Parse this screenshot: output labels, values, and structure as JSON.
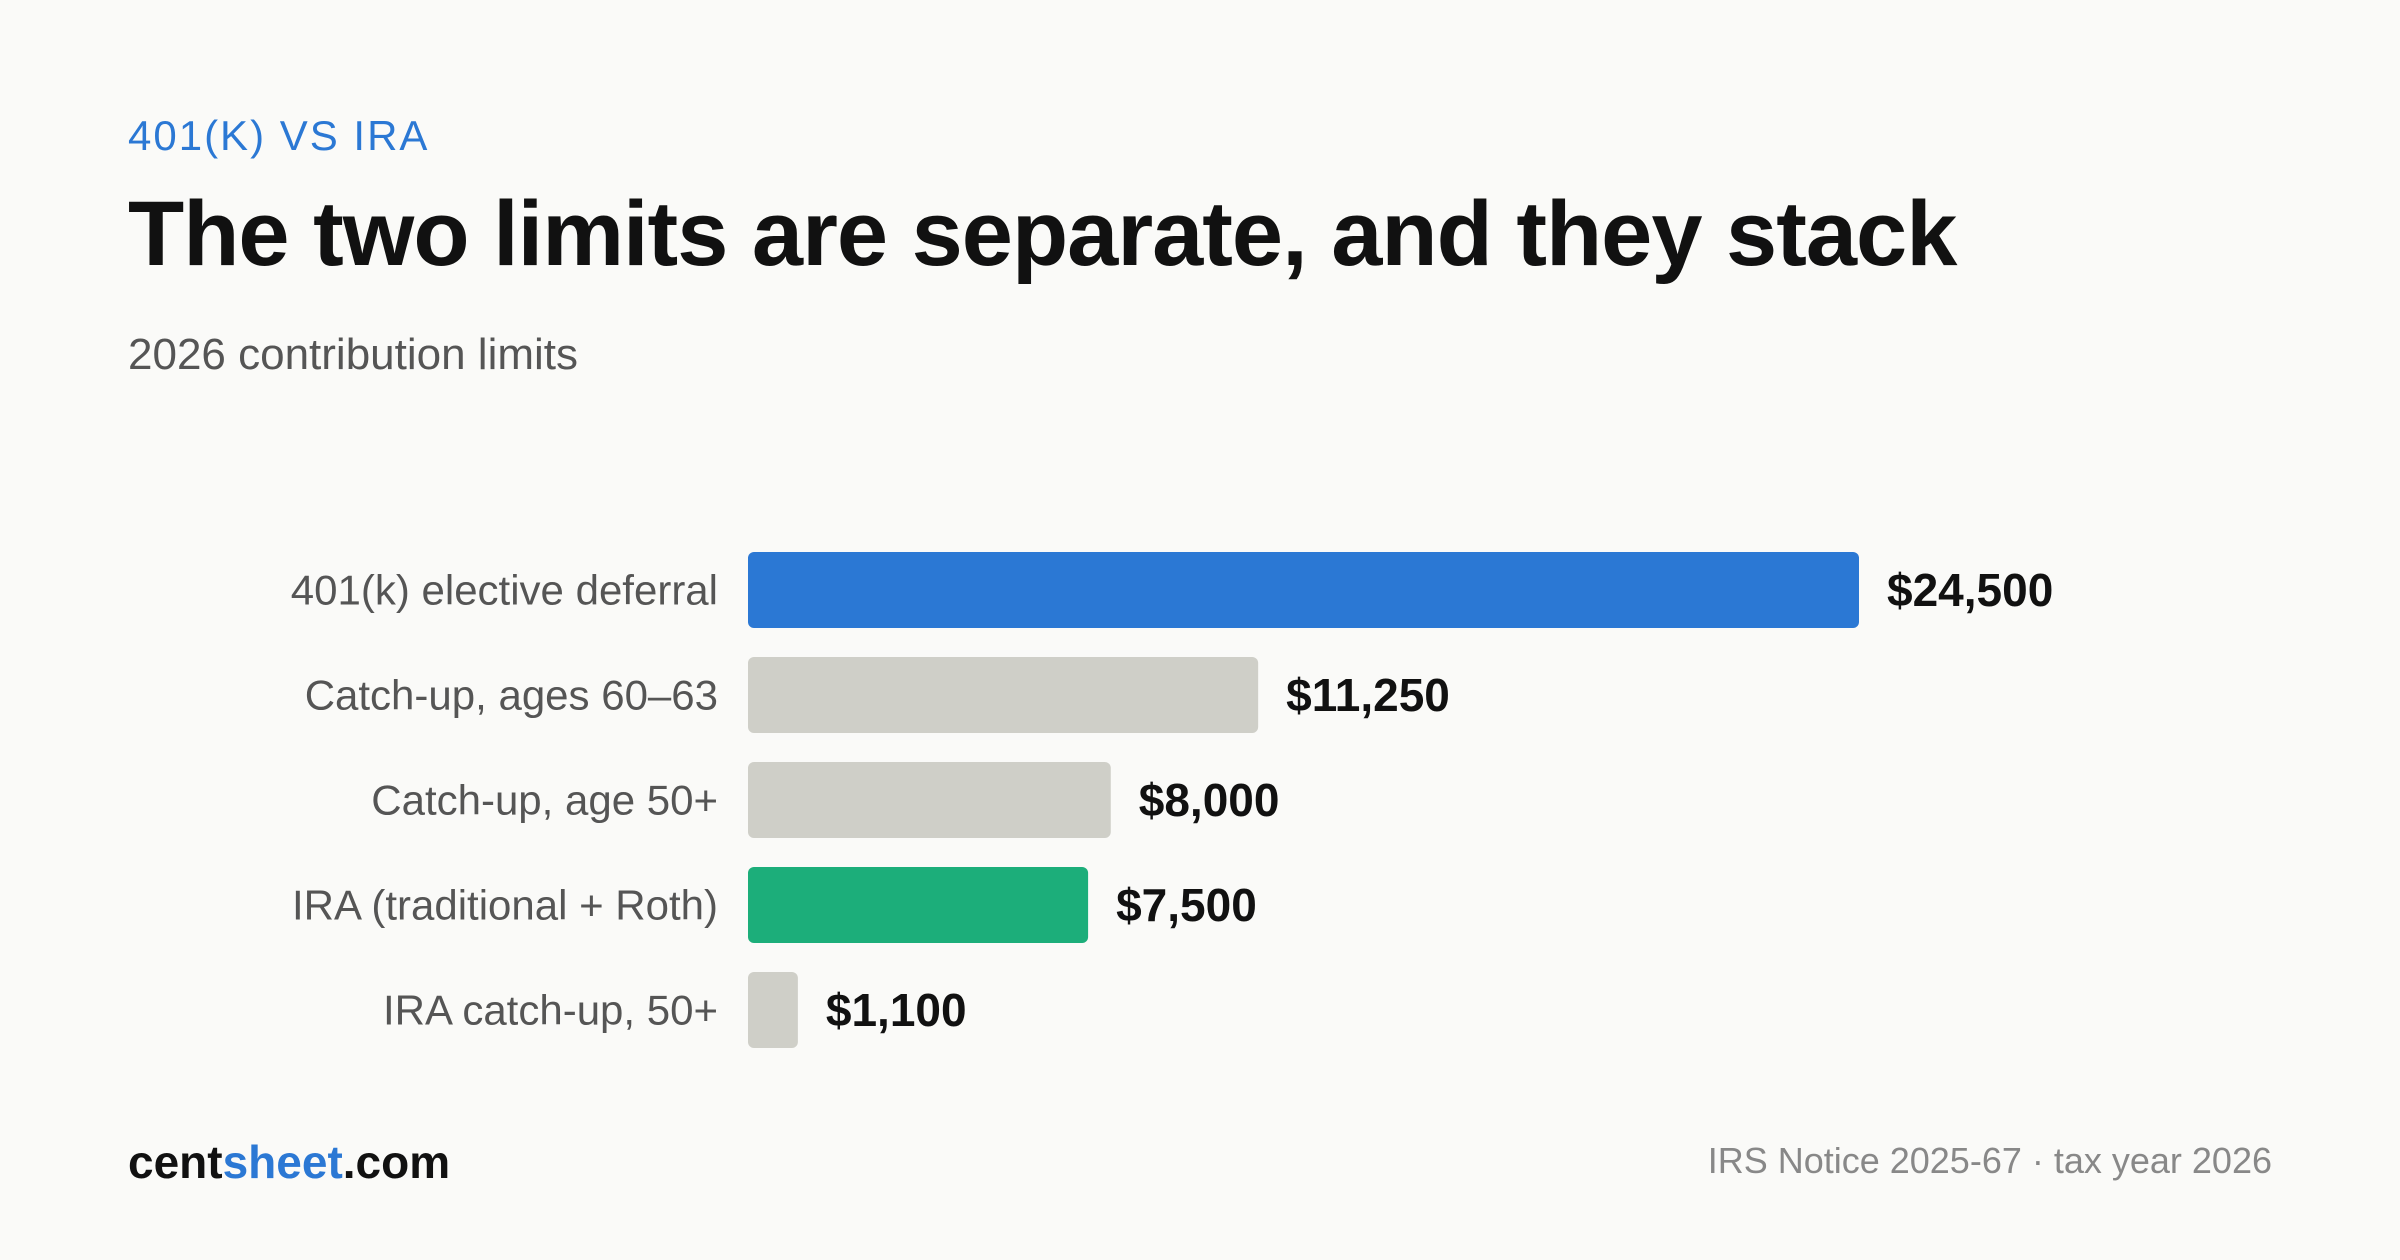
{
  "header": {
    "eyebrow": "401(K) VS IRA",
    "title": "The two limits are separate, and they stack",
    "subtitle": "2026 contribution limits"
  },
  "footer": {
    "brand_prefix": "cent",
    "brand_accent": "sheet",
    "brand_suffix": ".com",
    "source": "IRS Notice 2025-67 · tax year 2026"
  },
  "colors": {
    "accent": "#2b78d4",
    "blue_bar": "#2b78d4",
    "green_bar": "#1cae7a",
    "gray_bar": "#cfcfc8"
  },
  "chart_data": {
    "type": "bar",
    "orientation": "horizontal",
    "categories": [
      "401(k) elective deferral",
      "Catch-up, ages 60–63",
      "Catch-up, age 50+",
      "IRA (traditional + Roth)",
      "IRA catch-up, 50+"
    ],
    "values": [
      24500,
      11250,
      8000,
      7500,
      1100
    ],
    "value_labels": [
      "$24,500",
      "$11,250",
      "$8,000",
      "$7,500",
      "$1,100"
    ],
    "bar_colors": [
      "#2b78d4",
      "#cfcfc8",
      "#cfcfc8",
      "#1cae7a",
      "#cfcfc8"
    ],
    "xlim": [
      0,
      24500
    ],
    "grid": false,
    "legend": "none"
  }
}
